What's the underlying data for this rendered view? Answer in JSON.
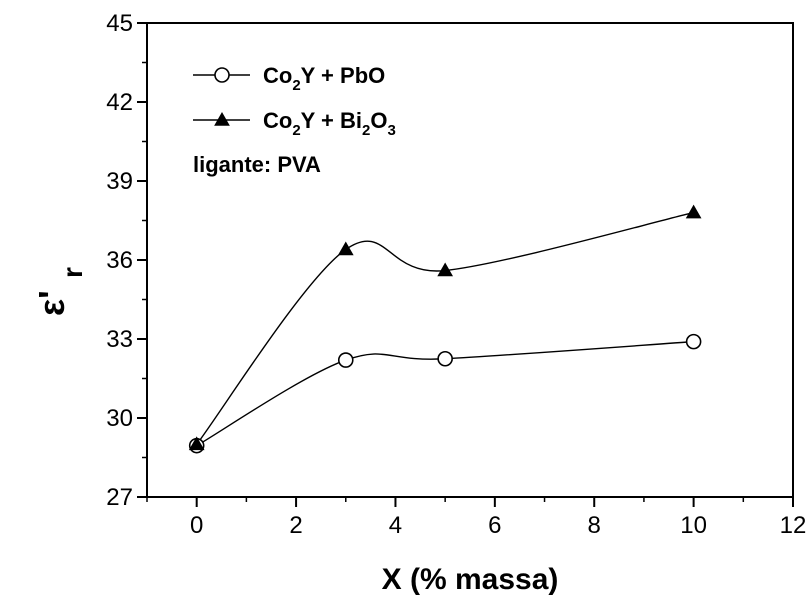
{
  "chart_data": {
    "type": "line",
    "xlabel": "X (% massa)",
    "ylabel": "ε'",
    "ylabel_sub": "r",
    "xlim": [
      -1,
      12
    ],
    "ylim": [
      27,
      45
    ],
    "xticks": [
      0,
      2,
      4,
      6,
      8,
      10,
      12
    ],
    "yticks": [
      27,
      30,
      33,
      36,
      39,
      42,
      45
    ],
    "grid": false,
    "legend_placement": "top-left",
    "series": [
      {
        "name": "Co₂Y + PbO",
        "legend_parts": [
          {
            "text": "Co",
            "sub": false
          },
          {
            "text": "2",
            "sub": true
          },
          {
            "text": "Y + PbO",
            "sub": false
          }
        ],
        "marker": "open-circle",
        "x": [
          0,
          3,
          5,
          10
        ],
        "y": [
          28.95,
          32.2,
          32.25,
          32.9
        ]
      },
      {
        "name": "Co₂Y + Bi₂O₃",
        "legend_parts": [
          {
            "text": "Co",
            "sub": false
          },
          {
            "text": "2",
            "sub": true
          },
          {
            "text": "Y + Bi",
            "sub": false
          },
          {
            "text": "2",
            "sub": true
          },
          {
            "text": "O",
            "sub": false
          },
          {
            "text": "3",
            "sub": true
          }
        ],
        "marker": "filled-triangle",
        "x": [
          0,
          3,
          5,
          10
        ],
        "y": [
          29.0,
          36.4,
          35.6,
          37.8
        ]
      }
    ],
    "annotations": [
      "ligante: PVA"
    ],
    "colors": {
      "line": "#000000",
      "marker_fill": "#000000",
      "background": "#ffffff"
    }
  }
}
